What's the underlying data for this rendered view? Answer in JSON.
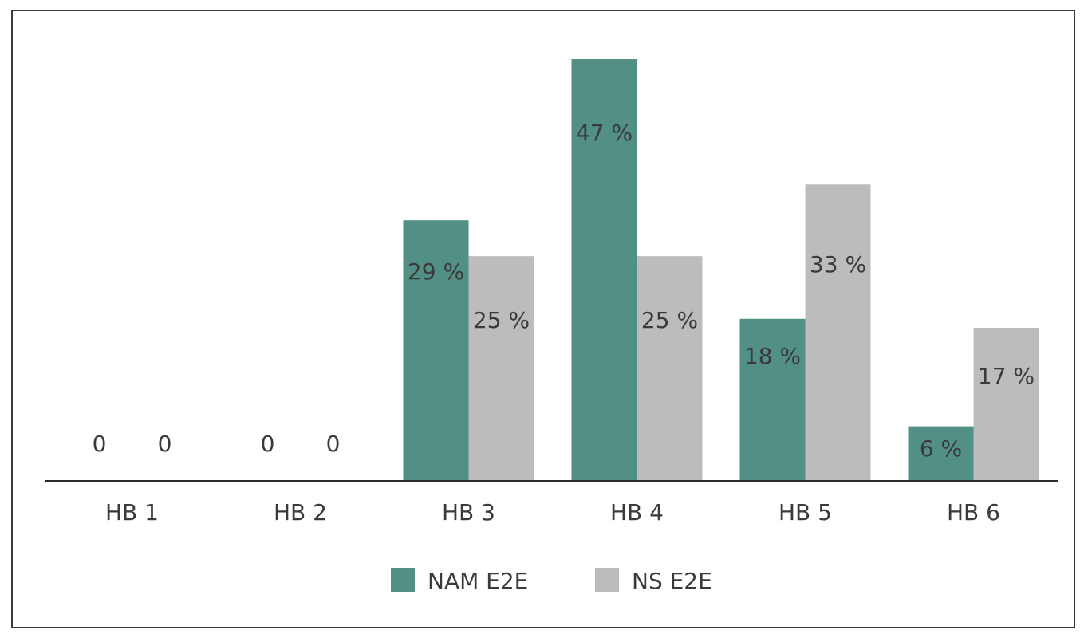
{
  "chart_data": {
    "type": "bar",
    "title": "",
    "xlabel": "",
    "ylabel": "",
    "categories": [
      "HB 1",
      "HB 2",
      "HB 3",
      "HB 4",
      "HB 5",
      "HB 6"
    ],
    "series": [
      {
        "name": "NAM E2E",
        "color": "#528f84",
        "values": [
          0,
          0,
          29,
          47,
          18,
          6
        ],
        "labels": [
          "0",
          "0",
          "29 %",
          "47 %",
          "18 %",
          "6 %"
        ]
      },
      {
        "name": "NS E2E",
        "color": "#bcbcbf",
        "values": [
          0,
          0,
          25,
          25,
          33,
          17
        ],
        "labels": [
          "0",
          "0",
          "25 %",
          "25 %",
          "33 %",
          "17 %"
        ]
      }
    ],
    "ylim": [
      0,
      47
    ],
    "grid": false,
    "legend_position": "bottom-center",
    "axis_color": "#2b2b2b"
  }
}
